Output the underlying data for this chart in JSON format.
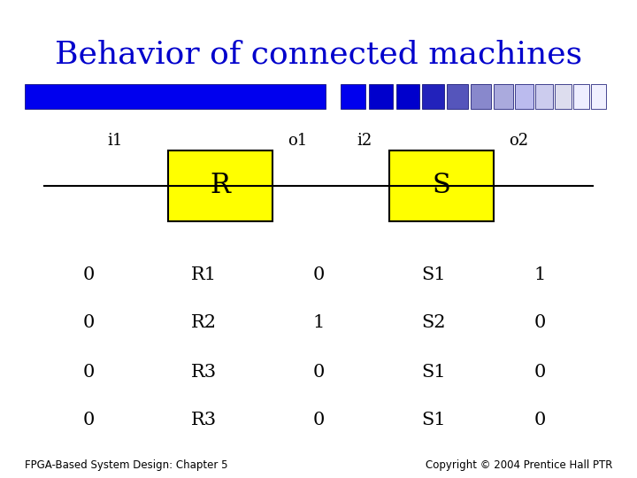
{
  "title": "Behavior of connected machines",
  "title_color": "#0000CC",
  "title_fontsize": 26,
  "background_color": "#FFFFFF",
  "box_color": "#FFFF00",
  "box_edge_color": "#000000",
  "bar_large_color": "#0000EE",
  "bar_blocks": [
    "#0000EE",
    "#0000EE",
    "#0000DD",
    "#0000CC",
    "#4444BB",
    "#6666BB",
    "#8888CC",
    "#8888CC",
    "#AAAADD",
    "#BBBBEE",
    "#CCCCEE",
    "#DDDDEE",
    "#EEEEFF"
  ],
  "table_data": [
    [
      "0",
      "R1",
      "0",
      "S1",
      "1"
    ],
    [
      "0",
      "R2",
      "1",
      "S2",
      "0"
    ],
    [
      "0",
      "R3",
      "0",
      "S1",
      "0"
    ],
    [
      "0",
      "R3",
      "0",
      "S1",
      "0"
    ]
  ],
  "footer_left": "FPGA-Based System Design: Chapter 5",
  "footer_right": "Copyright © 2004 Prentice Hall PTR",
  "footer_fontsize": 8.5,
  "text_fontsize": 15
}
